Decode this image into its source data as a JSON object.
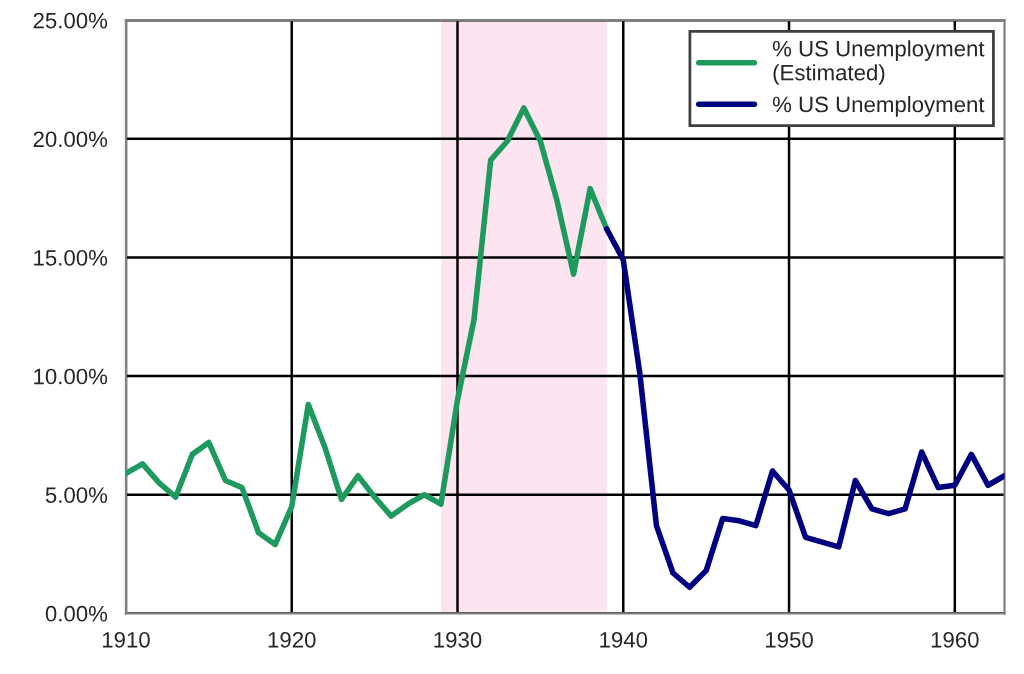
{
  "chart_data": {
    "type": "line",
    "series": [
      {
        "name": "% US Unemployment\n(Estimated)",
        "color": "#1e9a5e",
        "x": [
          1910,
          1911,
          1912,
          1913,
          1914,
          1915,
          1916,
          1917,
          1918,
          1919,
          1920,
          1921,
          1922,
          1923,
          1924,
          1925,
          1926,
          1927,
          1928,
          1929,
          1930,
          1931,
          1932,
          1933,
          1934,
          1935,
          1936,
          1937,
          1938,
          1939
        ],
        "values": [
          5.9,
          6.3,
          5.5,
          4.9,
          6.7,
          7.2,
          5.6,
          5.3,
          3.4,
          2.9,
          4.5,
          8.8,
          7.0,
          4.8,
          5.8,
          4.9,
          4.1,
          4.6,
          5.0,
          4.6,
          9.0,
          12.4,
          19.1,
          19.9,
          21.3,
          19.9,
          17.4,
          14.3,
          17.9,
          16.2
        ]
      },
      {
        "name": "% US Unemployment",
        "color": "#000080",
        "x": [
          1939,
          1940,
          1941,
          1942,
          1943,
          1944,
          1945,
          1946,
          1947,
          1948,
          1949,
          1950,
          1951,
          1952,
          1953,
          1954,
          1955,
          1956,
          1957,
          1958,
          1959,
          1960,
          1961,
          1962,
          1963
        ],
        "values": [
          16.2,
          14.9,
          10.1,
          3.7,
          1.7,
          1.1,
          1.8,
          4.0,
          3.9,
          3.7,
          6.0,
          5.2,
          3.2,
          3.0,
          2.8,
          5.6,
          4.4,
          4.2,
          4.4,
          6.8,
          5.3,
          5.4,
          6.7,
          5.4,
          5.8
        ]
      }
    ],
    "xlim": [
      1910,
      1963
    ],
    "xticks": [
      1910,
      1920,
      1930,
      1940,
      1950,
      1960
    ],
    "ylim": [
      0,
      25
    ],
    "yticks": [
      {
        "value": 0,
        "label": "0.00%"
      },
      {
        "value": 5,
        "label": "5.00%"
      },
      {
        "value": 10,
        "label": "10.00%"
      },
      {
        "value": 15,
        "label": "15.00%"
      },
      {
        "value": 20,
        "label": "20.00%"
      },
      {
        "value": 25,
        "label": "25.00%"
      }
    ],
    "bands": [
      {
        "axis": "x",
        "from": 1929,
        "to": 1939,
        "color": "#fce4f0"
      }
    ],
    "grid": true,
    "legend": "top right",
    "marker": "none",
    "line_style": "solid"
  }
}
